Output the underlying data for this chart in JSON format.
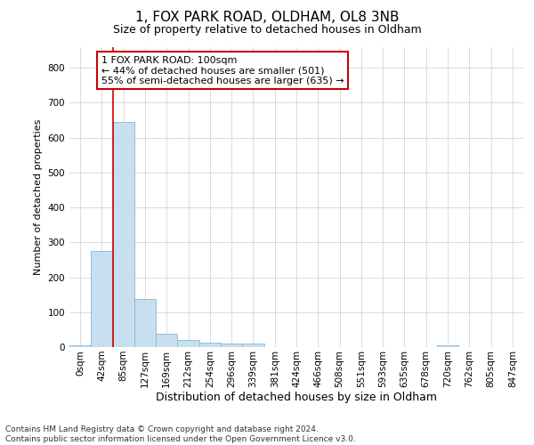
{
  "title_line1": "1, FOX PARK ROAD, OLDHAM, OL8 3NB",
  "title_line2": "Size of property relative to detached houses in Oldham",
  "xlabel": "Distribution of detached houses by size in Oldham",
  "ylabel": "Number of detached properties",
  "bar_color": "#c8dff0",
  "bar_edge_color": "#8ab4d4",
  "bin_labels": [
    "0sqm",
    "42sqm",
    "85sqm",
    "127sqm",
    "169sqm",
    "212sqm",
    "254sqm",
    "296sqm",
    "339sqm",
    "381sqm",
    "424sqm",
    "466sqm",
    "508sqm",
    "551sqm",
    "593sqm",
    "635sqm",
    "678sqm",
    "720sqm",
    "762sqm",
    "805sqm",
    "847sqm"
  ],
  "bar_values": [
    5,
    275,
    645,
    138,
    38,
    20,
    12,
    10,
    10,
    0,
    0,
    0,
    0,
    0,
    0,
    0,
    0,
    6,
    0,
    0,
    0
  ],
  "ylim": [
    0,
    860
  ],
  "yticks": [
    0,
    100,
    200,
    300,
    400,
    500,
    600,
    700,
    800
  ],
  "property_bin_index": 2,
  "vline_color": "#cc0000",
  "annotation_text_line1": "1 FOX PARK ROAD: 100sqm",
  "annotation_text_line2": "← 44% of detached houses are smaller (501)",
  "annotation_text_line3": "55% of semi-detached houses are larger (635) →",
  "footer_line1": "Contains HM Land Registry data © Crown copyright and database right 2024.",
  "footer_line2": "Contains public sector information licensed under the Open Government Licence v3.0.",
  "bg_color": "#ffffff",
  "plot_bg_color": "#ffffff",
  "grid_color": "#cccccc",
  "annotation_box_color": "#ffffff",
  "annotation_box_edge_color": "#cc0000",
  "title1_fontsize": 11,
  "title2_fontsize": 9,
  "ylabel_fontsize": 8,
  "xlabel_fontsize": 9,
  "tick_fontsize": 7.5,
  "annotation_fontsize": 8,
  "footer_fontsize": 6.5
}
